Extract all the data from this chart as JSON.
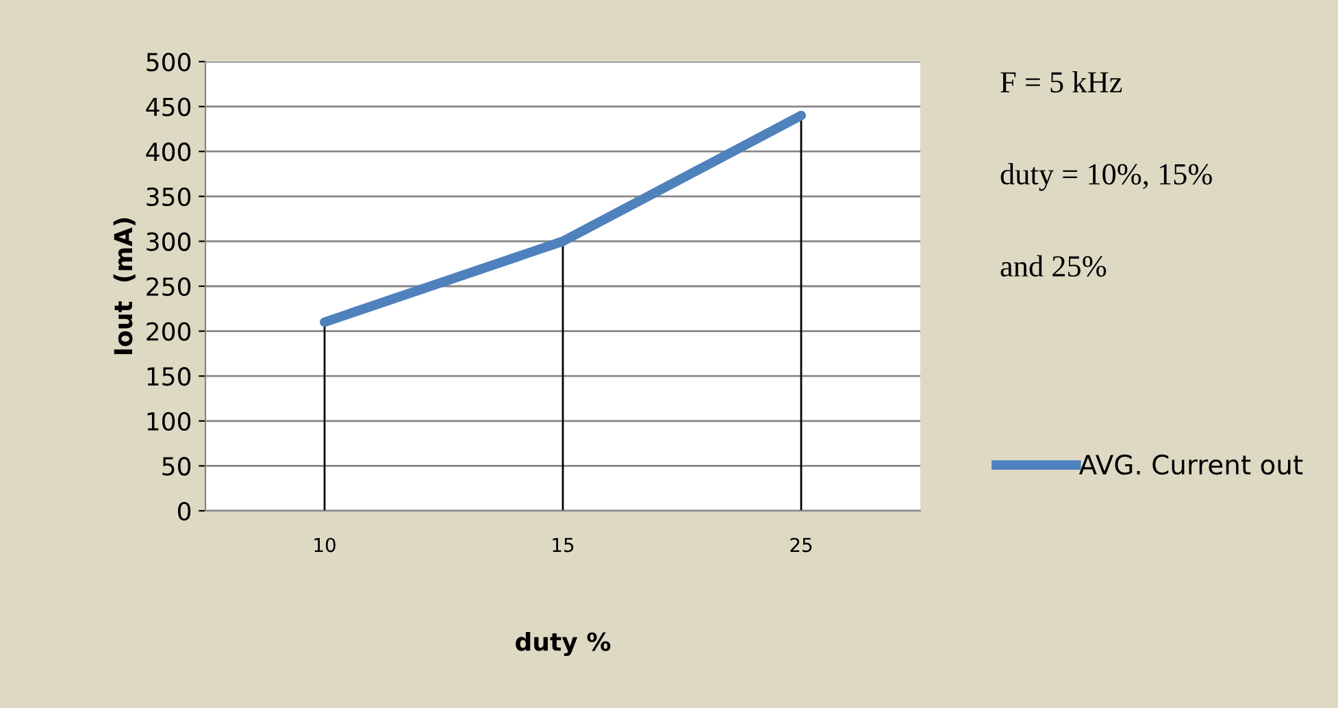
{
  "chart_data": {
    "type": "line",
    "xlabel": "duty %",
    "ylabel": "Iout  (mA)",
    "categories": [
      "10",
      "15",
      "25"
    ],
    "series": [
      {
        "name": "AVG. Current out",
        "color": "#4f81bd",
        "values": [
          210,
          300,
          440
        ],
        "errors": [
          [
            210,
            0
          ],
          [
            300,
            0
          ],
          [
            440,
            0
          ]
        ]
      }
    ],
    "ylim": [
      0,
      500
    ],
    "yticks": [
      0,
      50,
      100,
      150,
      200,
      250,
      300,
      350,
      400,
      450,
      500
    ],
    "grid": "y",
    "legend": "right",
    "marker": "none",
    "line_style": "solid",
    "annotations": [
      "F = 5 kHz",
      "duty = 10%, 15%",
      "and 25%"
    ]
  }
}
